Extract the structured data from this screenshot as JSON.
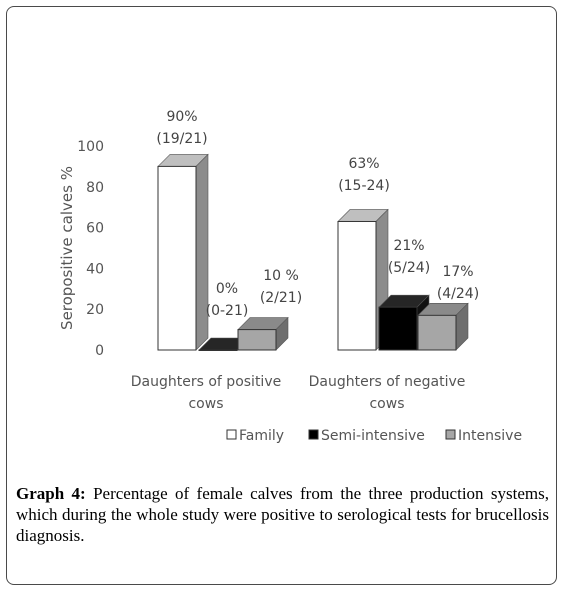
{
  "chart_data": {
    "type": "bar",
    "projection": "3d",
    "categories": [
      "Daughters of positive cows",
      "Daughters of negative cows"
    ],
    "category_lines": [
      [
        "Daughters of positive",
        "cows"
      ],
      [
        "Daughters of negative",
        "cows"
      ]
    ],
    "series": [
      {
        "name": "Family",
        "color": "#ffffff",
        "values": [
          90,
          63
        ],
        "labels": [
          [
            "90%",
            "(19/21)"
          ],
          [
            "63%",
            "(15-24)"
          ]
        ]
      },
      {
        "name": "Semi-intensive",
        "color": "#000000",
        "values": [
          0,
          21
        ],
        "labels": [
          [
            "0%",
            "(0-21)"
          ],
          [
            "21%",
            "(5/24)"
          ]
        ]
      },
      {
        "name": "Intensive",
        "color": "#a6a6a6",
        "values": [
          10,
          17
        ],
        "labels": [
          [
            "10 %",
            "(2/21)"
          ],
          [
            "17%",
            "(4/24)"
          ]
        ]
      }
    ],
    "ylabel": "Seropositive calves %",
    "ylim": [
      0,
      100
    ],
    "yticks": [
      0,
      20,
      40,
      60,
      80,
      100
    ],
    "grid": false,
    "legend_position": "bottom"
  },
  "caption": {
    "label": "Graph 4:",
    "text": "Percentage of female calves from the three production systems, which during the whole study were positive to serological tests for brucellosis diagnosis."
  }
}
